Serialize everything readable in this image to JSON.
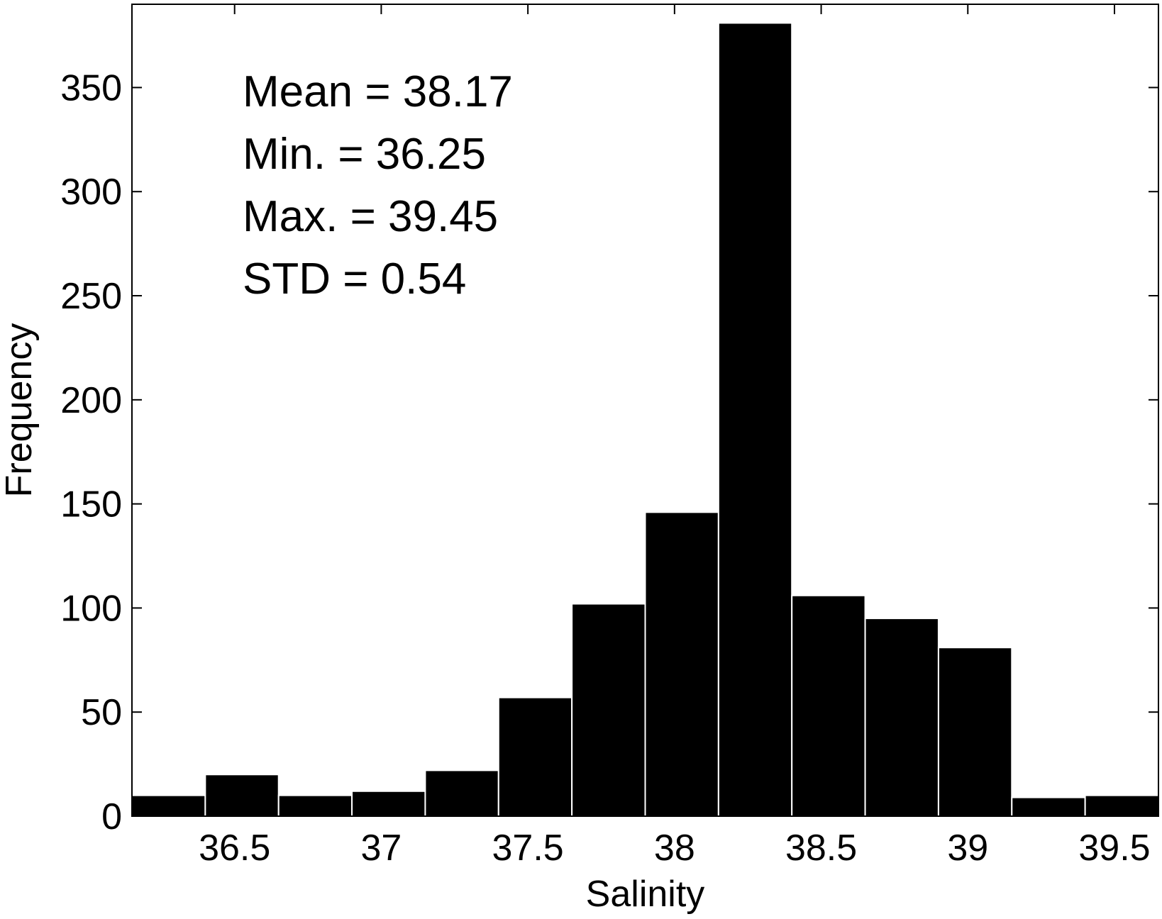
{
  "chart_data": {
    "type": "bar",
    "title": "",
    "xlabel": "Salinity",
    "ylabel": "Frequency",
    "xlim": [
      36.15,
      39.65
    ],
    "ylim": [
      0,
      390
    ],
    "bin_width": 0.25,
    "bin_centers": [
      36.275,
      36.525,
      36.775,
      37.025,
      37.275,
      37.525,
      37.775,
      38.025,
      38.275,
      38.525,
      38.775,
      39.025,
      39.275,
      39.525
    ],
    "values": [
      10,
      20,
      10,
      12,
      22,
      57,
      102,
      146,
      381,
      106,
      95,
      81,
      9,
      10
    ],
    "x_ticks": [
      36.5,
      37,
      37.5,
      38,
      38.5,
      39,
      39.5
    ],
    "x_tick_labels": [
      "36.5",
      "37",
      "37.5",
      "38",
      "38.5",
      "39",
      "39.5"
    ],
    "y_ticks": [
      0,
      50,
      100,
      150,
      200,
      250,
      300,
      350
    ],
    "y_tick_labels": [
      "0",
      "50",
      "100",
      "150",
      "200",
      "250",
      "300",
      "350"
    ],
    "annotations": [
      "Mean = 38.17",
      "Min. = 36.25",
      "Max. = 39.45",
      "STD = 0.54"
    ],
    "grid": false,
    "bar_color": "#000000",
    "bar_edge_color": "#ffffff"
  }
}
